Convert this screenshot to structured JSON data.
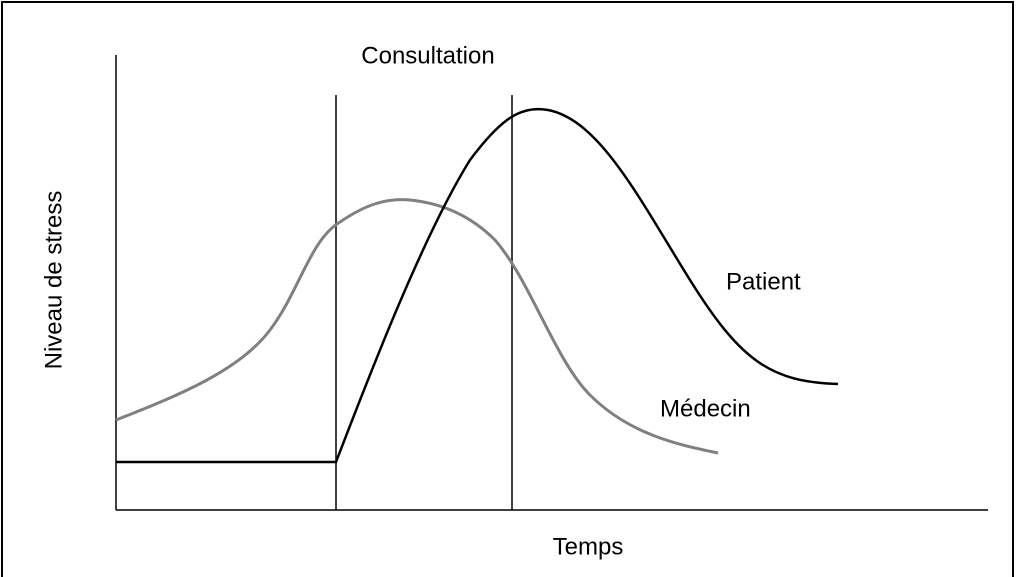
{
  "title": "Consultation",
  "x_label": "Temps",
  "y_label": "Niveau de stress",
  "curves": [
    {
      "label": "Patient"
    },
    {
      "label": "Médecin"
    }
  ]
}
